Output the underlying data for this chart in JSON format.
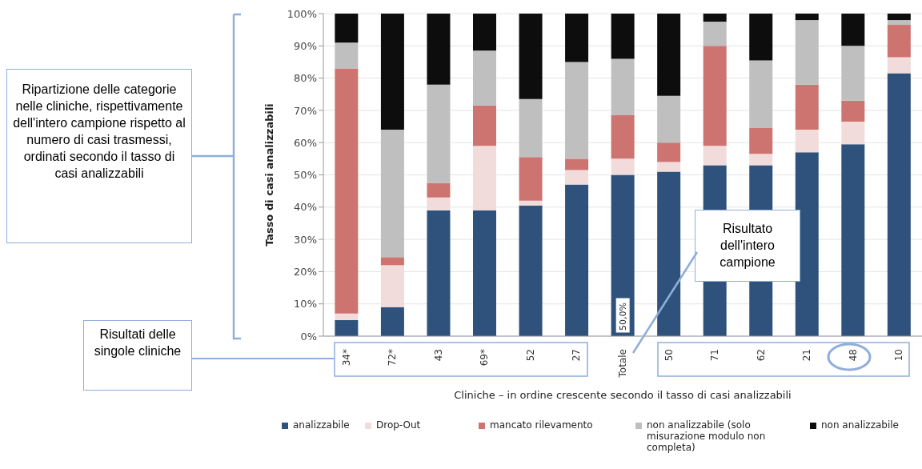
{
  "chart_data": {
    "type": "bar",
    "stacked": true,
    "ylabel": "Tasso di casi analizzabili",
    "xlabel": "Cliniche – in ordine crescente secondo il tasso di casi analizzabili",
    "categories": [
      "34*",
      "72*",
      "43",
      "69*",
      "52",
      "27",
      "Totale",
      "50",
      "71",
      "62",
      "21",
      "48",
      "10"
    ],
    "series": [
      {
        "name": "analizzabile",
        "color": "#2f527d",
        "values": [
          5,
          9,
          39,
          39,
          40.5,
          47,
          50,
          51,
          53,
          53,
          57,
          59.5,
          81.5
        ],
        "value_labels": [
          null,
          null,
          null,
          null,
          null,
          null,
          "50,0%",
          null,
          null,
          null,
          null,
          null,
          null
        ]
      },
      {
        "name": "Drop-Out",
        "color": "#f2dcdb",
        "values": [
          2,
          13,
          4,
          20,
          1.5,
          4.5,
          5,
          3,
          6,
          3.5,
          7,
          7,
          5
        ]
      },
      {
        "name": "mancato rilevamento",
        "color": "#cd7370",
        "values": [
          76,
          2.5,
          4.5,
          12.5,
          13.5,
          3.5,
          13.5,
          6,
          31,
          8,
          14,
          6.5,
          10
        ]
      },
      {
        "name": "non analizzabile (solo misurazione modulo non completa)",
        "color": "#bfbfbf",
        "values": [
          8,
          39.5,
          30.5,
          17,
          18,
          30,
          17.5,
          14.5,
          7.5,
          21,
          20,
          17,
          1.5
        ]
      },
      {
        "name": "non analizzabile",
        "color": "#0d0d0d",
        "values": [
          9,
          36,
          22,
          11.5,
          26.5,
          15,
          14,
          25.5,
          2.5,
          14.5,
          2,
          10,
          2
        ]
      }
    ],
    "ylim": [
      0,
      100
    ],
    "yticks": [
      {
        "value": 0,
        "label": "0%"
      },
      {
        "value": 10,
        "label": "10%"
      },
      {
        "value": 20,
        "label": "20%"
      },
      {
        "value": 30,
        "label": "30%"
      },
      {
        "value": 40,
        "label": "40%"
      },
      {
        "value": 50,
        "label": "50%"
      },
      {
        "value": 60,
        "label": "60%"
      },
      {
        "value": 70,
        "label": "70%"
      },
      {
        "value": 80,
        "label": "80%"
      },
      {
        "value": 90,
        "label": "90%"
      },
      {
        "value": 100,
        "label": "100%"
      }
    ],
    "grid": "y",
    "legend": "bottom",
    "annotations": [
      "Ripartizione delle categorie nelle cliniche, rispettivamente dell'intero campione rispetto al numero di casi trasmessi, ordinati secondo il tasso di casi analizzabili",
      "Risultati delle singole cliniche",
      "Risultato dell'intero campione"
    ]
  }
}
